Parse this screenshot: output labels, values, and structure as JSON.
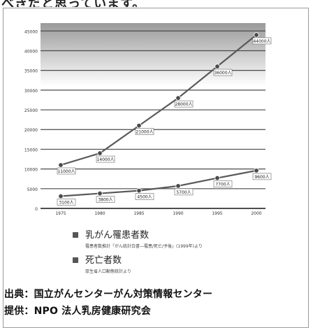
{
  "header_fragment": "べきだと思っています。",
  "chart_data": {
    "type": "line",
    "categories": [
      "1975",
      "1980",
      "1985",
      "1990",
      "1995",
      "2000"
    ],
    "series": [
      {
        "name": "乳がん罹患者数",
        "note": "罹患者数推計「がん統計白書―罹患/死亡/予後」(1999年)より",
        "color": "#5a5a5a",
        "values": [
          11000,
          14000,
          21000,
          28000,
          36000,
          44000
        ]
      },
      {
        "name": "死亡者数",
        "note": "厚生省人口動態統計より",
        "color": "#5a5a5a",
        "values": [
          3100,
          3800,
          4500,
          5700,
          7700,
          9600
        ]
      }
    ],
    "data_labels": [
      [
        "11000人",
        "14000人",
        "21000人",
        "28000人",
        "36000人",
        "44000人"
      ],
      [
        "3100人",
        "3800人",
        "4500人",
        "5700人",
        "7700人",
        "9600人"
      ]
    ],
    "y_ticks": [
      "0",
      "5000",
      "10000",
      "15000",
      "20000",
      "25000",
      "30000",
      "35000",
      "40000",
      "45000"
    ],
    "ylim": [
      0,
      47000
    ],
    "grid": true
  },
  "source": "出典：国立がんセンターがん対策情報センター",
  "provider": "提供：NPO 法人乳房健康研究会"
}
